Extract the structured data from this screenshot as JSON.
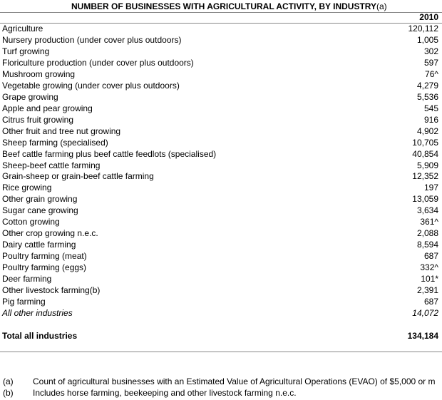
{
  "header": {
    "title": "NUMBER OF BUSINESSES WITH AGRICULTURAL ACTIVITY, BY INDUSTRY",
    "title_note": "(a)",
    "column": "2010"
  },
  "table": {
    "rows": [
      {
        "label": "Agriculture",
        "value": "120,112"
      },
      {
        "label": "Nursery production (under cover plus outdoors)",
        "value": "1,005"
      },
      {
        "label": "Turf growing",
        "value": "302"
      },
      {
        "label": "Floriculture production (under cover plus outdoors)",
        "value": "597"
      },
      {
        "label": "Mushroom growing",
        "value": "76^"
      },
      {
        "label": "Vegetable growing (under cover plus outdoors)",
        "value": "4,279"
      },
      {
        "label": "Grape growing",
        "value": "5,536"
      },
      {
        "label": "Apple and pear growing",
        "value": "545"
      },
      {
        "label": "Citrus fruit growing",
        "value": "916"
      },
      {
        "label": "Other fruit and tree nut growing",
        "value": "4,902"
      },
      {
        "label": "Sheep farming (specialised)",
        "value": "10,705"
      },
      {
        "label": "Beef cattle farming plus beef cattle feedlots (specialised)",
        "value": "40,854"
      },
      {
        "label": "Sheep-beef cattle farming",
        "value": "5,909"
      },
      {
        "label": "Grain-sheep or grain-beef cattle farming",
        "value": "12,352"
      },
      {
        "label": "Rice growing",
        "value": "197"
      },
      {
        "label": "Other grain growing",
        "value": "13,059"
      },
      {
        "label": "Sugar cane growing",
        "value": "3,634"
      },
      {
        "label": "Cotton growing",
        "value": "361^"
      },
      {
        "label": "Other crop growing n.e.c.",
        "value": "2,088"
      },
      {
        "label": "Dairy cattle farming",
        "value": "8,594"
      },
      {
        "label": "Poultry farming (meat)",
        "value": "687"
      },
      {
        "label": "Poultry farming (eggs)",
        "value": "332^"
      },
      {
        "label": "Deer farming",
        "value": "101*"
      },
      {
        "label": "Other livestock farming(b)",
        "value": "2,391"
      },
      {
        "label": "Pig farming",
        "value": "687"
      }
    ],
    "other_row": {
      "label": "All other industries",
      "value": "14,072"
    },
    "total_row": {
      "label": "Total all industries",
      "value": "134,184"
    }
  },
  "footnotes": [
    {
      "mark": "(a)",
      "text": "Count of agricultural businesses with an Estimated Value of Agricultural Operations (EVAO) of $5,000 or m"
    },
    {
      "mark": "(b)",
      "text": "Includes horse farming, beekeeping and other livestock farming n.e.c."
    }
  ]
}
